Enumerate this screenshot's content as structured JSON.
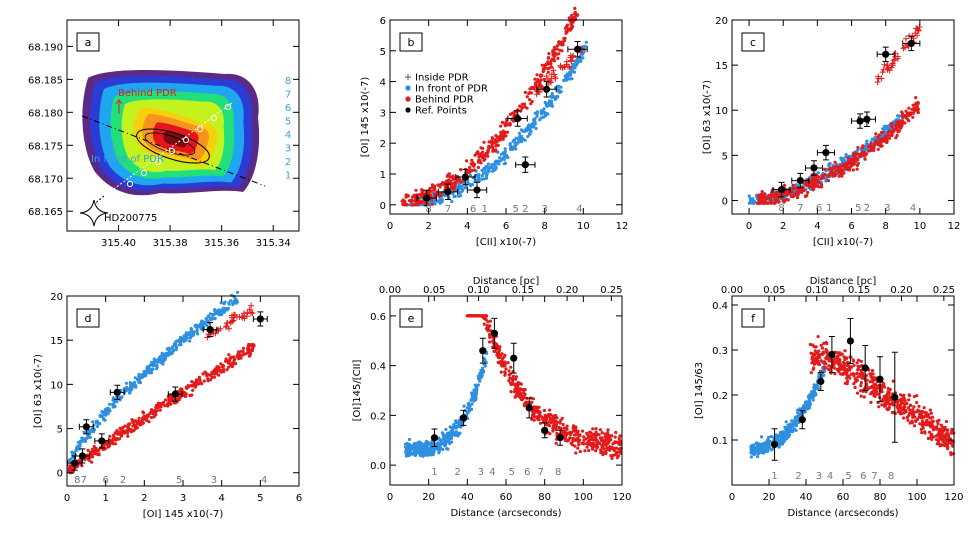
{
  "colors": {
    "in_front": "#2f8fe0",
    "behind": "#e31b1b",
    "inside": "#e31b1b",
    "ref": "#000000",
    "numbers_blue": "#3aa0e0",
    "numbers_grey": "#777777"
  },
  "chart_data": [
    {
      "type": "heatmap",
      "panel_label": "a",
      "xlim": [
        315.42,
        315.33
      ],
      "ylim": [
        68.162,
        68.194
      ],
      "xticks": [
        "315.40",
        "315.38",
        "315.36",
        "315.34"
      ],
      "yticks": [
        "68.165",
        "68.170",
        "68.175",
        "68.180",
        "68.185",
        "68.190"
      ],
      "annotations": [
        "Behind PDR",
        "In front of PDR",
        "HD200775"
      ],
      "right_numbers": [
        "8",
        "7",
        "6",
        "5",
        "4",
        "3",
        "2",
        "1"
      ]
    },
    {
      "type": "scatter",
      "panel_label": "b",
      "xlabel": "[CII] x10(-7)",
      "ylabel": "[OI] 145 x10(-7)",
      "xlim": [
        0,
        12
      ],
      "ylim": [
        -0.3,
        6
      ],
      "xticks": [
        "0",
        "2",
        "4",
        "6",
        "8",
        "10",
        "12"
      ],
      "yticks": [
        "0",
        "1",
        "2",
        "3",
        "4",
        "5",
        "6"
      ],
      "legend": [
        "Inside PDR",
        "In front of PDR",
        "Behind PDR",
        "Ref. Points"
      ],
      "ref_points": [
        [
          1.9,
          0.22
        ],
        [
          3.0,
          0.42
        ],
        [
          3.9,
          0.9
        ],
        [
          4.5,
          0.48
        ],
        [
          6.6,
          2.8
        ],
        [
          7.0,
          1.3
        ],
        [
          8.1,
          3.75
        ],
        [
          9.7,
          5.05
        ]
      ],
      "point_labels": [
        [
          2.0,
          "8"
        ],
        [
          3.0,
          "7"
        ],
        [
          4.3,
          "6"
        ],
        [
          4.9,
          "1"
        ],
        [
          6.5,
          "5"
        ],
        [
          7.0,
          "2"
        ],
        [
          8.0,
          "3"
        ],
        [
          9.8,
          "4"
        ]
      ]
    },
    {
      "type": "scatter",
      "panel_label": "c",
      "xlabel": "[CII] x10(-7)",
      "ylabel": "[OI] 63 x10(-7)",
      "xlim": [
        -1,
        12
      ],
      "ylim": [
        -1.5,
        20
      ],
      "xticks": [
        "0",
        "2",
        "4",
        "6",
        "8",
        "10",
        "12"
      ],
      "yticks": [
        "0",
        "5",
        "10",
        "15",
        "20"
      ],
      "ref_points": [
        [
          1.9,
          1.2
        ],
        [
          3.0,
          2.2
        ],
        [
          3.8,
          3.6
        ],
        [
          4.5,
          5.3
        ],
        [
          6.5,
          8.8
        ],
        [
          6.9,
          9.0
        ],
        [
          8.0,
          16.2
        ],
        [
          9.5,
          17.4
        ]
      ],
      "point_labels": [
        [
          1.9,
          "8"
        ],
        [
          3.0,
          "7"
        ],
        [
          4.1,
          "6"
        ],
        [
          4.7,
          "1"
        ],
        [
          6.4,
          "5"
        ],
        [
          6.9,
          "2"
        ],
        [
          8.1,
          "3"
        ],
        [
          9.6,
          "4"
        ]
      ]
    },
    {
      "type": "scatter",
      "panel_label": "d",
      "xlabel": "[OI] 145 x10(-7)",
      "ylabel": "[OI] 63 x10(-7)",
      "xlim": [
        0,
        6
      ],
      "ylim": [
        -1.5,
        20
      ],
      "xticks": [
        "0",
        "1",
        "2",
        "3",
        "4",
        "5",
        "6"
      ],
      "yticks": [
        "0",
        "5",
        "10",
        "15",
        "20"
      ],
      "ref_points": [
        [
          0.2,
          1.1
        ],
        [
          0.4,
          1.9
        ],
        [
          0.5,
          5.2
        ],
        [
          0.9,
          3.6
        ],
        [
          1.3,
          9.1
        ],
        [
          2.8,
          8.9
        ],
        [
          3.7,
          16.2
        ],
        [
          5.0,
          17.4
        ]
      ],
      "point_labels": [
        [
          0.35,
          "87"
        ],
        [
          1.0,
          "6"
        ],
        [
          1.45,
          "2"
        ],
        [
          2.9,
          "5"
        ],
        [
          3.8,
          "3"
        ],
        [
          5.1,
          "4"
        ]
      ]
    },
    {
      "type": "scatter",
      "panel_label": "e",
      "xlabel": "Distance (arcseconds)",
      "ylabel": "[OI]145/[CII]",
      "top_label": "Distance [pc]",
      "xlim": [
        0,
        120
      ],
      "ylim": [
        -0.08,
        0.68
      ],
      "xticks": [
        "0",
        "20",
        "40",
        "60",
        "80",
        "100",
        "120"
      ],
      "yticks": [
        "0.0",
        "0.2",
        "0.4",
        "0.6"
      ],
      "top_ticks": [
        "0.00",
        "0.05",
        "0.10",
        "0.15",
        "0.20",
        "0.25"
      ],
      "ref_points": [
        [
          23,
          0.11,
          0.035
        ],
        [
          38,
          0.19,
          0.03
        ],
        [
          48,
          0.46,
          0.05
        ],
        [
          54,
          0.53,
          0.06
        ],
        [
          64,
          0.43,
          0.06
        ],
        [
          72,
          0.23,
          0.04
        ],
        [
          80,
          0.14,
          0.03
        ],
        [
          88,
          0.11,
          0.03
        ]
      ],
      "point_labels": [
        [
          23,
          "1"
        ],
        [
          35,
          "2"
        ],
        [
          47,
          "3"
        ],
        [
          53,
          "4"
        ],
        [
          63,
          "5"
        ],
        [
          71,
          "6"
        ],
        [
          78,
          "7"
        ],
        [
          87,
          "8"
        ]
      ]
    },
    {
      "type": "scatter",
      "panel_label": "f",
      "xlabel": "Distance (arcseconds)",
      "ylabel": "[OI] 145/63",
      "top_label": "Distance [pc]",
      "xlim": [
        0,
        120
      ],
      "ylim": [
        0.0,
        0.42
      ],
      "xticks": [
        "0",
        "20",
        "40",
        "60",
        "80",
        "100",
        "120"
      ],
      "yticks": [
        "0.1",
        "0.2",
        "0.3",
        "0.4"
      ],
      "top_ticks": [
        "0.00",
        "0.05",
        "0.10",
        "0.15",
        "0.20",
        "0.25"
      ],
      "ref_points": [
        [
          23,
          0.09,
          0.035
        ],
        [
          38,
          0.145,
          0.02
        ],
        [
          48,
          0.23,
          0.02
        ],
        [
          54,
          0.29,
          0.04
        ],
        [
          64,
          0.32,
          0.05
        ],
        [
          72,
          0.26,
          0.05
        ],
        [
          80,
          0.235,
          0.05
        ],
        [
          88,
          0.195,
          0.1
        ]
      ],
      "point_labels": [
        [
          23,
          "1"
        ],
        [
          36,
          "2"
        ],
        [
          47,
          "3"
        ],
        [
          53,
          "4"
        ],
        [
          63,
          "5"
        ],
        [
          71,
          "6"
        ],
        [
          77,
          "7"
        ],
        [
          86,
          "8"
        ]
      ]
    }
  ]
}
